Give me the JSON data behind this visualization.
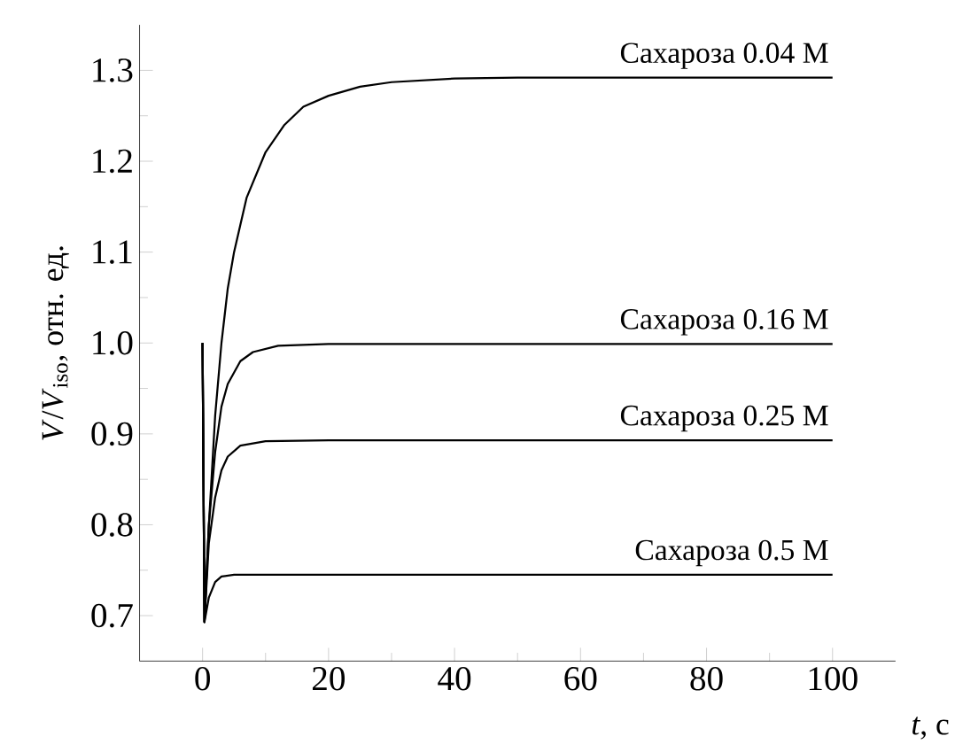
{
  "chart_data": {
    "type": "line",
    "xlabel": "*t*, с",
    "ylabel": "*V*/*V*$_{iso}$, отн. ед.",
    "xlim": [
      -10,
      110
    ],
    "ylim": [
      0.65,
      1.35
    ],
    "xticks": [
      0,
      20,
      40,
      60,
      80,
      100
    ],
    "yticks": [
      {
        "value": 0.7,
        "label": "0.7"
      },
      {
        "value": 0.8,
        "label": "0.8"
      },
      {
        "value": 0.9,
        "label": "0.9"
      },
      {
        "value": 1.0,
        "label": "1.0"
      },
      {
        "value": 1.1,
        "label": "1.1"
      },
      {
        "value": 1.2,
        "label": "1.2"
      },
      {
        "value": 1.3,
        "label": "1.3"
      }
    ],
    "series": [
      {
        "name": "Сахароза 0.04 M",
        "color": "#000000",
        "x": [
          0,
          0.3,
          1,
          2,
          3,
          4,
          5,
          7,
          10,
          13,
          16,
          20,
          25,
          30,
          40,
          50,
          100
        ],
        "values": [
          1.0,
          0.693,
          0.8,
          0.92,
          1.0,
          1.06,
          1.1,
          1.16,
          1.21,
          1.24,
          1.26,
          1.272,
          1.282,
          1.287,
          1.291,
          1.292,
          1.292
        ]
      },
      {
        "name": "Сахароза 0.16 M",
        "color": "#000000",
        "x": [
          0,
          0.3,
          1,
          2,
          3,
          4,
          6,
          8,
          12,
          20,
          100
        ],
        "values": [
          1.0,
          0.693,
          0.8,
          0.88,
          0.93,
          0.955,
          0.98,
          0.99,
          0.997,
          0.999,
          0.999
        ]
      },
      {
        "name": "Сахароза 0.25 M",
        "color": "#000000",
        "x": [
          0,
          0.3,
          1,
          2,
          3,
          4,
          6,
          10,
          20,
          100
        ],
        "values": [
          1.0,
          0.693,
          0.78,
          0.83,
          0.86,
          0.875,
          0.887,
          0.892,
          0.893,
          0.893
        ]
      },
      {
        "name": "Сахароза 0.5 M",
        "color": "#000000",
        "x": [
          0,
          0.3,
          1,
          2,
          3,
          5,
          100
        ],
        "values": [
          1.0,
          0.693,
          0.72,
          0.737,
          0.743,
          0.745,
          0.745
        ]
      }
    ]
  }
}
